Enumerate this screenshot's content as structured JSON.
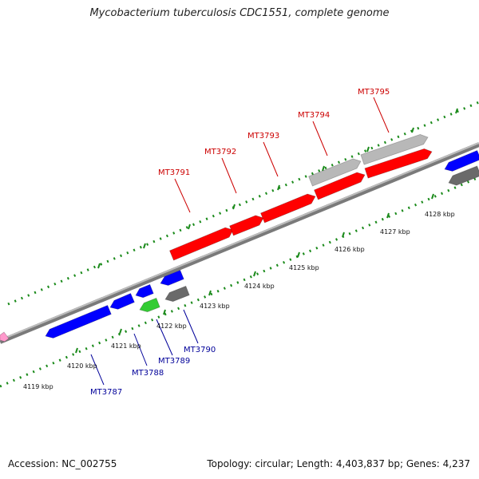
{
  "title": "Mycobacterium tuberculosis CDC1551, complete genome",
  "footer": {
    "accession": "Accession: NC_002755",
    "summary": "Topology: circular; Length: 4,403,837 bp; Genes: 4,237"
  },
  "colors": {
    "forward_gene": "#ff0000",
    "reverse_gene": "#0000ff",
    "gray_gene": "#b8b8b8",
    "dark_gene": "#6a6a6a",
    "green_gene": "#33cc33",
    "pink_gene": "#ff99cc",
    "tick": "#1a8a1a",
    "backbone": "#888888",
    "forward_label": "#cc0000",
    "reverse_label": "#000099"
  },
  "scale_labels": [
    "4119 kbp",
    "4120 kbp",
    "4121 kbp",
    "4122 kbp",
    "4123 kbp",
    "4124 kbp",
    "4125 kbp",
    "4126 kbp",
    "4127 kbp",
    "4128 kbp"
  ],
  "forward_gene_labels": [
    "MT3791",
    "MT3792",
    "MT3793",
    "MT3794",
    "MT3795"
  ],
  "reverse_gene_labels": [
    "MT3787",
    "MT3788",
    "MT3789",
    "MT3790"
  ]
}
